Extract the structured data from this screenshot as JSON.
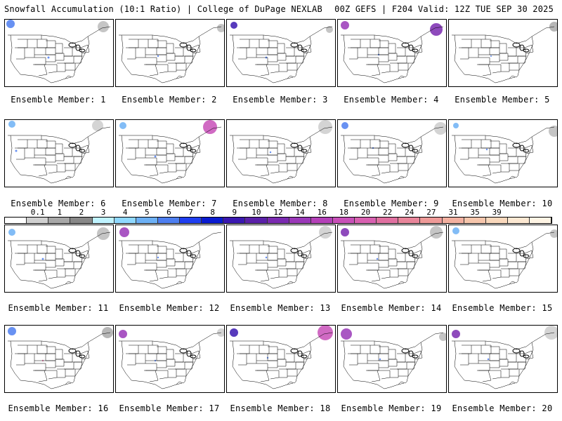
{
  "header": {
    "left": "Snowfall Accumulation (10:1 Ratio) | College of DuPage NEXLAB",
    "right": "00Z GEFS | F204 Valid: 12Z TUE SEP 30 2025"
  },
  "colorbar": {
    "ticks": [
      "0.1",
      "1",
      "2",
      "3",
      "4",
      "5",
      "6",
      "7",
      "8",
      "9",
      "10",
      "12",
      "14",
      "16",
      "18",
      "20",
      "22",
      "24",
      "27",
      "31",
      "35",
      "39"
    ],
    "colors": [
      "#ffffff",
      "#d0d0d0",
      "#a8a8a8",
      "#888888",
      "#bff3ff",
      "#8fd8ff",
      "#6cb0f5",
      "#4d7ef0",
      "#1f3ef0",
      "#0a1bd0",
      "#3a18b0",
      "#5a20a8",
      "#7a2ab0",
      "#9a38b8",
      "#b440b8",
      "#c850b8",
      "#d860b0",
      "#e070a0",
      "#e8859a",
      "#ee9a98",
      "#f2b0a0",
      "#f6c6ac",
      "#f9d8bc",
      "#fce8d2",
      "#fef4e4"
    ]
  },
  "panels": [
    {
      "caption": "Ensemble Member: 1"
    },
    {
      "caption": "Ensemble Member: 2"
    },
    {
      "caption": "Ensemble Member: 3"
    },
    {
      "caption": "Ensemble Member: 4"
    },
    {
      "caption": "Ensemble Member: 5"
    },
    {
      "caption": "Ensemble Member: 6"
    },
    {
      "caption": "Ensemble Member: 7"
    },
    {
      "caption": "Ensemble Member: 8"
    },
    {
      "caption": "Ensemble Member: 9"
    },
    {
      "caption": "Ensemble Member: 10"
    },
    {
      "caption": "Ensemble Member: 11"
    },
    {
      "caption": "Ensemble Member: 12"
    },
    {
      "caption": "Ensemble Member: 13"
    },
    {
      "caption": "Ensemble Member: 14"
    },
    {
      "caption": "Ensemble Member: 15"
    },
    {
      "caption": "Ensemble Member: 16"
    },
    {
      "caption": "Ensemble Member: 17"
    },
    {
      "caption": "Ensemble Member: 18"
    },
    {
      "caption": "Ensemble Member: 19"
    },
    {
      "caption": "Ensemble Member: 20"
    }
  ]
}
